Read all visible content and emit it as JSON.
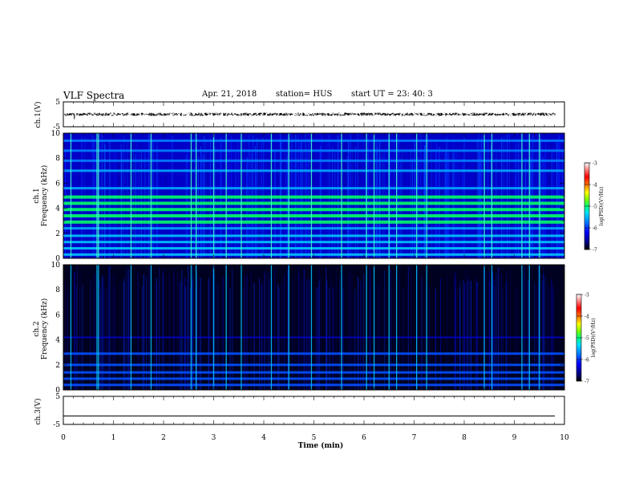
{
  "header": {
    "title": "VLF Spectra",
    "date": "Apr. 21, 2018",
    "station": "station= HUS",
    "start": "start  UT  =   23: 40: 3"
  },
  "chart_data": [
    {
      "type": "line",
      "panel": "ch1_waveform",
      "ylabel": "ch.1(V)",
      "ylim": [
        -5,
        5
      ],
      "yticks": [
        "5",
        "-5"
      ],
      "xlim": [
        0,
        10
      ],
      "description_values": {
        "baseline": 0
      }
    },
    {
      "type": "heatmap",
      "panel": "ch1_spectrogram",
      "ylabel": "ch.1 Frequency (kHz)",
      "ylim": [
        0,
        10
      ],
      "yticks": [
        "0",
        "2",
        "4",
        "6",
        "8",
        "10"
      ],
      "colorbar": {
        "label": "log(PSD)(V²/Hz)",
        "ticks": [
          "-3",
          "-4",
          "-5",
          "-6",
          "-7"
        ],
        "range": [
          -7,
          -3
        ]
      },
      "bands_khz": [
        0.3,
        0.8,
        1.3,
        1.8,
        2.4,
        2.9,
        3.4,
        3.9,
        4.4,
        4.9,
        5.6,
        7.0,
        7.8,
        8.6,
        9.4
      ],
      "spikes_min": [
        0.15,
        0.67,
        0.7,
        1.35,
        1.75,
        2.55,
        2.65,
        3.0,
        3.25,
        3.55,
        4.15,
        4.5,
        4.95,
        5.55,
        6.05,
        6.2,
        6.5,
        6.65,
        7.05,
        7.25,
        8.4,
        8.55,
        9.15,
        9.3,
        9.5
      ]
    },
    {
      "type": "heatmap",
      "panel": "ch2_spectrogram",
      "ylabel": "ch.2 Frequency (kHz)",
      "ylim": [
        0,
        10
      ],
      "yticks": [
        "0",
        "2",
        "4",
        "6",
        "8",
        "10"
      ],
      "colorbar": {
        "label": "log(PSD)(V²/Hz)",
        "ticks": [
          "-3",
          "-4",
          "-5",
          "-6",
          "-7"
        ],
        "range": [
          -7,
          -3
        ]
      },
      "bands_khz": [
        0.4,
        0.9,
        1.4,
        2.0,
        2.9,
        4.2
      ],
      "spikes_min": [
        0.15,
        0.67,
        0.7,
        1.35,
        1.75,
        2.55,
        2.65,
        3.0,
        3.25,
        3.55,
        4.15,
        4.5,
        4.95,
        5.55,
        6.05,
        6.2,
        6.5,
        6.65,
        7.05,
        7.25,
        8.4,
        8.55,
        9.15,
        9.3,
        9.5
      ]
    },
    {
      "type": "line",
      "panel": "ch3_waveform",
      "ylabel": "ch.3(V)",
      "ylim": [
        -5,
        5
      ],
      "yticks": [
        "5",
        "-5"
      ],
      "xlim": [
        0,
        10
      ],
      "values": {
        "level": -2
      }
    }
  ],
  "xaxis": {
    "label": "Time  (min)",
    "ticks": [
      "0",
      "1",
      "2",
      "3",
      "4",
      "5",
      "6",
      "7",
      "8",
      "9",
      "10"
    ]
  },
  "colors": {
    "cmap": [
      "#000000",
      "#00007a",
      "#0000ff",
      "#0080ff",
      "#00e0ff",
      "#00ff80",
      "#80ff00",
      "#ffff00",
      "#ff8000",
      "#ff0000",
      "#ff9090",
      "#ffffff"
    ]
  }
}
